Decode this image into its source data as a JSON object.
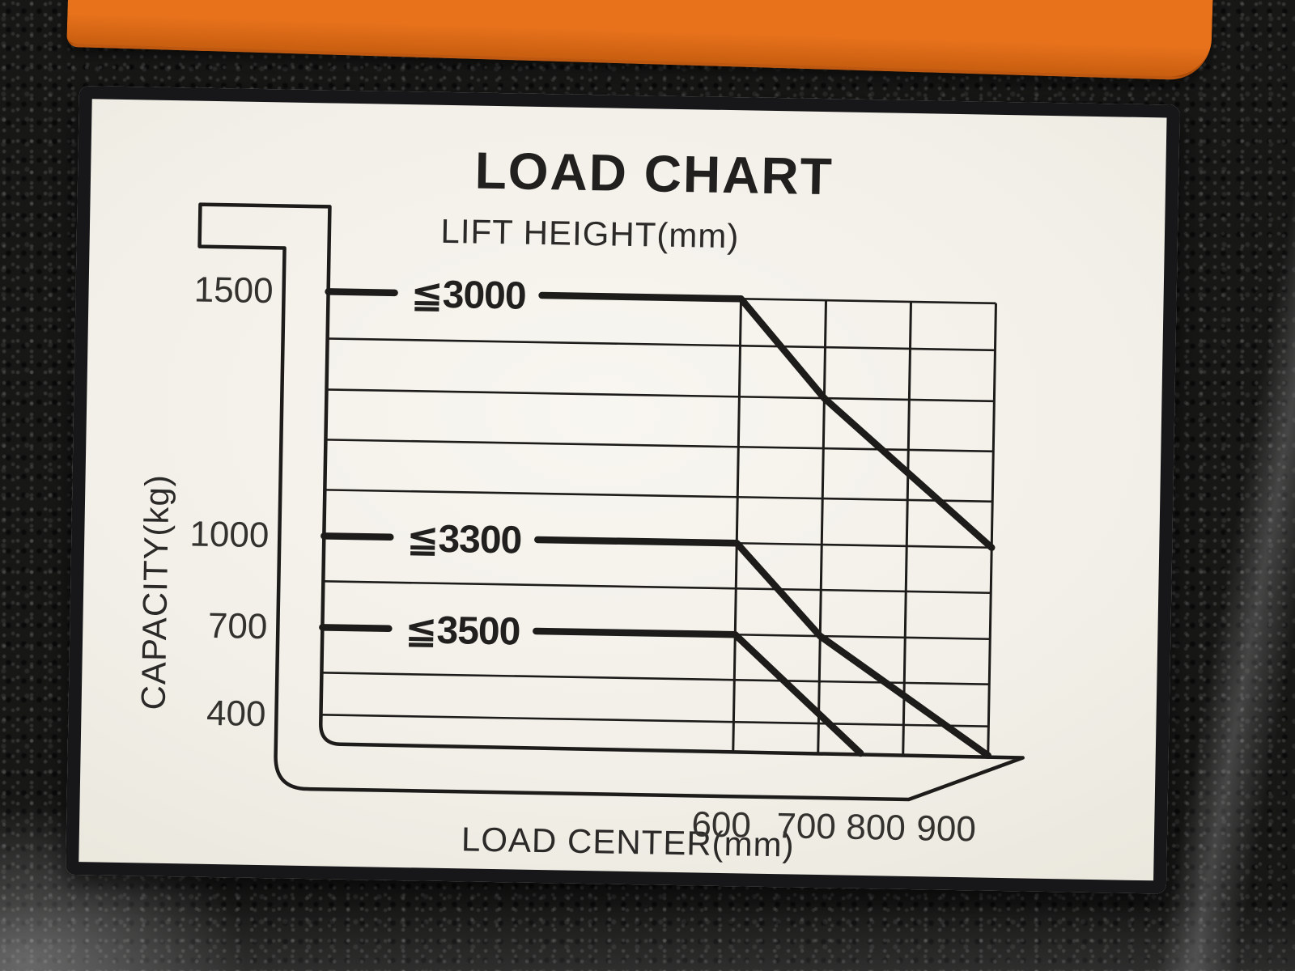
{
  "machine": {
    "body_color": "#171716",
    "panel_color": "#e8721c",
    "panel_edge_color": "#c85e10"
  },
  "label": {
    "title": "LOAD CHART",
    "subtitle": "LIFT HEIGHT(mm)",
    "y_axis_label": "CAPACITY(kg)",
    "x_axis_label": "LOAD CENTER(mm)",
    "line_color": "#1d1c1a",
    "background_color": "#f3f1ea"
  },
  "chart_data": {
    "type": "line",
    "title": "LOAD CHART",
    "subtitle": "LIFT HEIGHT(mm)",
    "xlabel": "LOAD CENTER(mm)",
    "ylabel": "CAPACITY(kg)",
    "x_ticks": [
      600,
      700,
      800,
      900
    ],
    "y_ticks": [
      1500,
      1000,
      700,
      400
    ],
    "y_gridlines_minor": [
      1400,
      1300,
      1200,
      1100,
      850,
      550,
      400
    ],
    "xlim": [
      600,
      900
    ],
    "ylim": [
      300,
      1500
    ],
    "grid": true,
    "legend_position": "inline-on-lines",
    "series": [
      {
        "name": "lift height <= 3000 mm",
        "label": "≦3000",
        "lift_height_mm_max": 3000,
        "points_mm_kg": [
          [
            600,
            1500
          ],
          [
            700,
            1300
          ],
          [
            900,
            1000
          ]
        ]
      },
      {
        "name": "lift height <= 3300 mm",
        "label": "≦3300",
        "lift_height_mm_max": 3300,
        "points_mm_kg": [
          [
            600,
            1000
          ],
          [
            700,
            700
          ],
          [
            900,
            300
          ]
        ]
      },
      {
        "name": "lift height <= 3500 mm",
        "label": "≦3500",
        "lift_height_mm_max": 3500,
        "points_mm_kg": [
          [
            600,
            700
          ],
          [
            750,
            300
          ]
        ]
      }
    ]
  }
}
